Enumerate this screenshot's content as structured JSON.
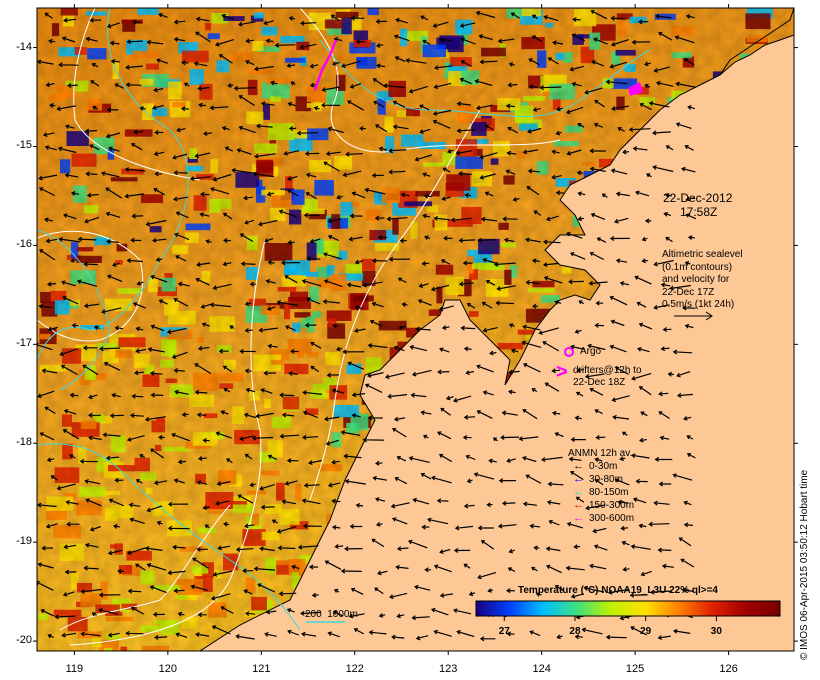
{
  "map": {
    "lat_labels": [
      "-14",
      "-15",
      "-16",
      "-17",
      "-18",
      "-19",
      "-20"
    ],
    "lon_labels": [
      "119",
      "120",
      "121",
      "122",
      "123",
      "124",
      "125",
      "126"
    ],
    "lat_range": [
      -20.1,
      -13.6
    ],
    "lon_range": [
      118.6,
      126.7
    ],
    "colors": {
      "land": "#fdc896",
      "frame": "#000000",
      "cyan_contour": "#40d8d8",
      "white_contour": "#ffffff"
    }
  },
  "annotations": {
    "date": "22-Dec-2012",
    "time": "17:58Z",
    "altimetry": [
      "Altimetric sealevel",
      "(0.1m contours)",
      "and velocity for",
      "22-Dec 17Z",
      "0.5m/s (1kt 24h)"
    ],
    "argo_label": "Argo",
    "drifter_text": [
      "drifters@12h to",
      "22-Dec 18Z"
    ],
    "drifter_glyph": ">",
    "depth_scale": "200  1000m"
  },
  "anmn_legend": {
    "title": "ANMN 12h av.",
    "items": [
      {
        "label": "0-30m",
        "color": "#000000"
      },
      {
        "label": "30-80m",
        "color": "#0000ff"
      },
      {
        "label": "80-150m",
        "color": "#00d8d8"
      },
      {
        "label": "150-300m",
        "color": "#ff0000"
      },
      {
        "label": "300-600m",
        "color": "#ff00ff"
      }
    ]
  },
  "colorbar": {
    "title": "Temperature (°C) NOAA19_L3U 22% ql>=4",
    "ticks": [
      "27",
      "28",
      "29",
      "30"
    ],
    "range": [
      26.6,
      30.9
    ],
    "stops": [
      "#1a0080",
      "#0040ff",
      "#00c0ff",
      "#40e080",
      "#c0f000",
      "#ffe000",
      "#ff8000",
      "#e02000",
      "#a00000",
      "#780000"
    ]
  },
  "credit": "© IMOS 06-Apr-2015 03:50:12 Hobart time"
}
